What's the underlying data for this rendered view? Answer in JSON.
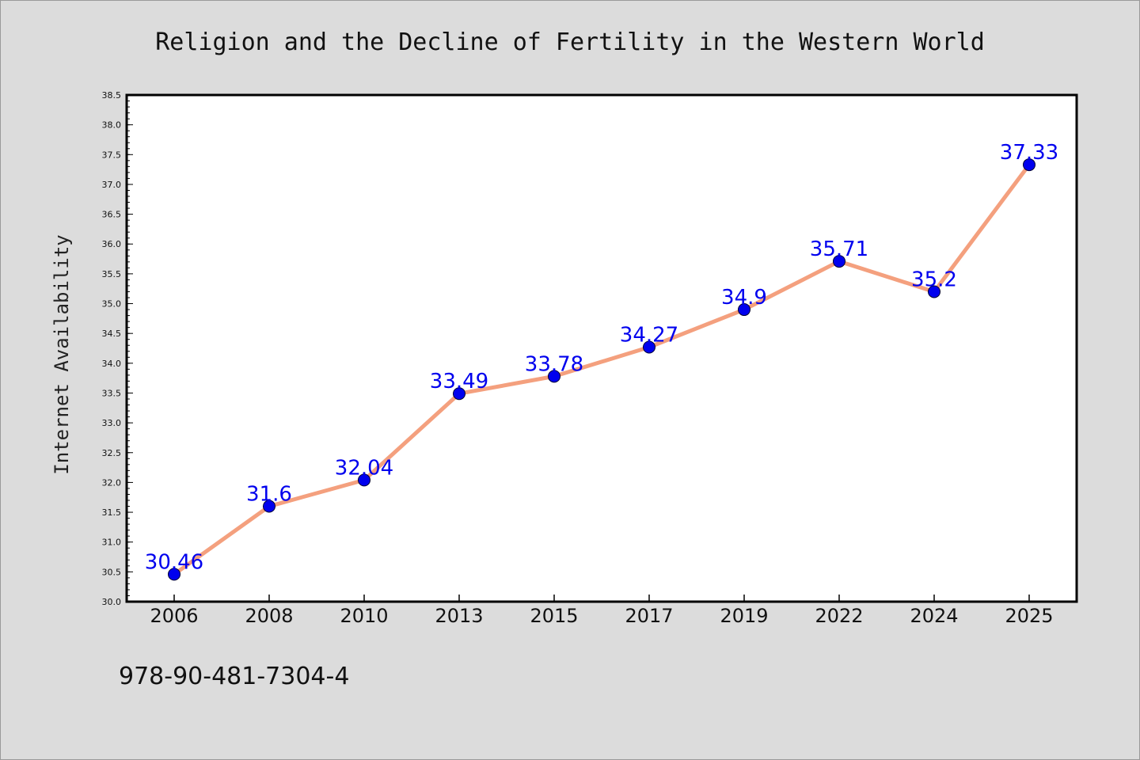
{
  "chart_data": {
    "type": "line",
    "title": "Religion and the Decline of Fertility in the Western World",
    "xlabel": "",
    "ylabel": "Internet Availability",
    "categories": [
      "2006",
      "2008",
      "2010",
      "2013",
      "2015",
      "2017",
      "2019",
      "2022",
      "2024",
      "2025"
    ],
    "series": [
      {
        "values": [
          30.46,
          31.6,
          32.04,
          33.49,
          33.78,
          34.27,
          34.9,
          35.71,
          35.2,
          37.33
        ],
        "labels": [
          "30.46",
          "31.6",
          "32.04",
          "33.49",
          "33.78",
          "34.27",
          "34.9",
          "35.71",
          "35.2",
          "37.33"
        ]
      }
    ],
    "ylim": [
      30.0,
      38.5
    ],
    "yticks": [
      "30.0",
      "30.5",
      "31.0",
      "31.5",
      "32.0",
      "32.5",
      "33.0",
      "33.5",
      "34.0",
      "34.5",
      "35.0",
      "35.5",
      "36.0",
      "36.5",
      "37.0",
      "37.5",
      "38.0",
      "38.5"
    ],
    "grid": false,
    "line_color": "#f4a07e",
    "marker_color": "#0000ee",
    "label_color": "#0000ee",
    "background": "#dcdcdc",
    "plot_background": "#ffffff"
  },
  "footer": {
    "text": "978-90-481-7304-4"
  }
}
